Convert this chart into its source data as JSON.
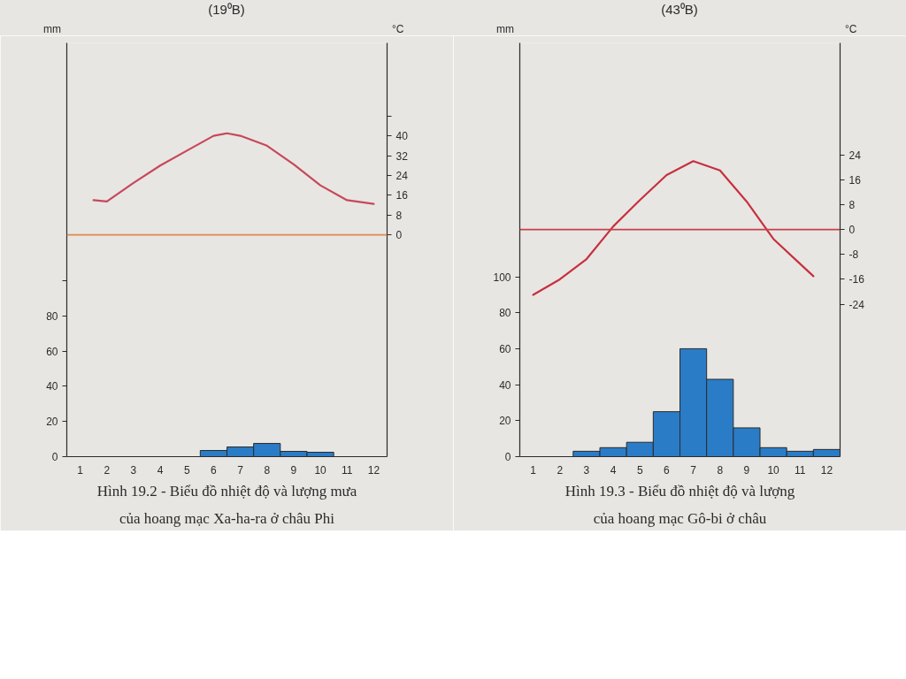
{
  "chart_data": [
    {
      "type": "bar",
      "title": "(19⁰B)",
      "ylabel": "mm",
      "y2label": "°C",
      "xlim": [
        0.5,
        12.5
      ],
      "xticks": [
        1,
        2,
        3,
        4,
        5,
        6,
        7,
        8,
        9,
        10,
        11,
        12
      ],
      "ylim": [
        0,
        235
      ],
      "yticks": [
        0,
        20,
        40,
        60,
        80,
        {
          "value": 100,
          "label": null
        }
      ],
      "y2lim": [
        -89.5,
        77.5
      ],
      "y2ticks": [
        0,
        8,
        16,
        24,
        32,
        40,
        {
          "value": 48,
          "label": null
        }
      ],
      "series": [
        {
          "color": "#2a7cc7",
          "x": [
            6,
            7,
            8,
            9,
            10
          ],
          "values": [
            3.5,
            5.5,
            7.5,
            3,
            2.5
          ]
        },
        {
          "type": "line",
          "axis": "y2",
          "color": "#c8485a",
          "x": [
            1.5,
            2,
            3,
            4,
            5,
            6,
            6.5,
            7,
            8,
            9,
            10,
            11,
            12
          ],
          "values": [
            14,
            13.5,
            21,
            28,
            34,
            40,
            41,
            40,
            36,
            28.5,
            20,
            14,
            12.5
          ]
        }
      ],
      "ref_lines": [
        {
          "axis": "y2",
          "value": 0,
          "color": "#e08a4a"
        }
      ],
      "annotations": [
        "Hình 19.2 - Biểu đồ nhiệt độ và lượng mưa",
        "của hoang mạc Xa-ha-ra ở châu Phi"
      ]
    },
    {
      "type": "bar",
      "title": "(43⁰B)",
      "ylabel": "mm",
      "y2label": "°C",
      "xlim": [
        0.5,
        12.5
      ],
      "xticks": [
        1,
        2,
        3,
        4,
        5,
        6,
        7,
        8,
        9,
        10,
        11,
        12
      ],
      "ylim": [
        0,
        230
      ],
      "yticks": [
        0,
        20,
        40,
        60,
        80,
        100
      ],
      "y2lim": [
        -73,
        60
      ],
      "y2ticks": [
        -24,
        -16,
        -8,
        0,
        8,
        16,
        24
      ],
      "series": [
        {
          "color": "#2a7cc7",
          "x": [
            3,
            4,
            5,
            6,
            7,
            8,
            9,
            10,
            11,
            12
          ],
          "values": [
            3,
            5,
            8,
            25,
            60,
            43,
            16,
            5,
            3,
            4
          ]
        },
        {
          "type": "line",
          "axis": "y2",
          "color": "#c8303f",
          "x": [
            1,
            2,
            3,
            4,
            5,
            6,
            7,
            8,
            9,
            10,
            11,
            11.5
          ],
          "values": [
            -21,
            -16,
            -9.5,
            1,
            9.5,
            17.5,
            22,
            19,
            9,
            -3,
            -11,
            -15
          ]
        }
      ],
      "ref_lines": [
        {
          "axis": "y2",
          "value": 0,
          "color": "#c8404a"
        }
      ],
      "annotations": [
        "Hình 19.3 - Biểu đồ nhiệt độ và lượng",
        "của hoang mạc Gô-bi ở châu"
      ]
    }
  ]
}
